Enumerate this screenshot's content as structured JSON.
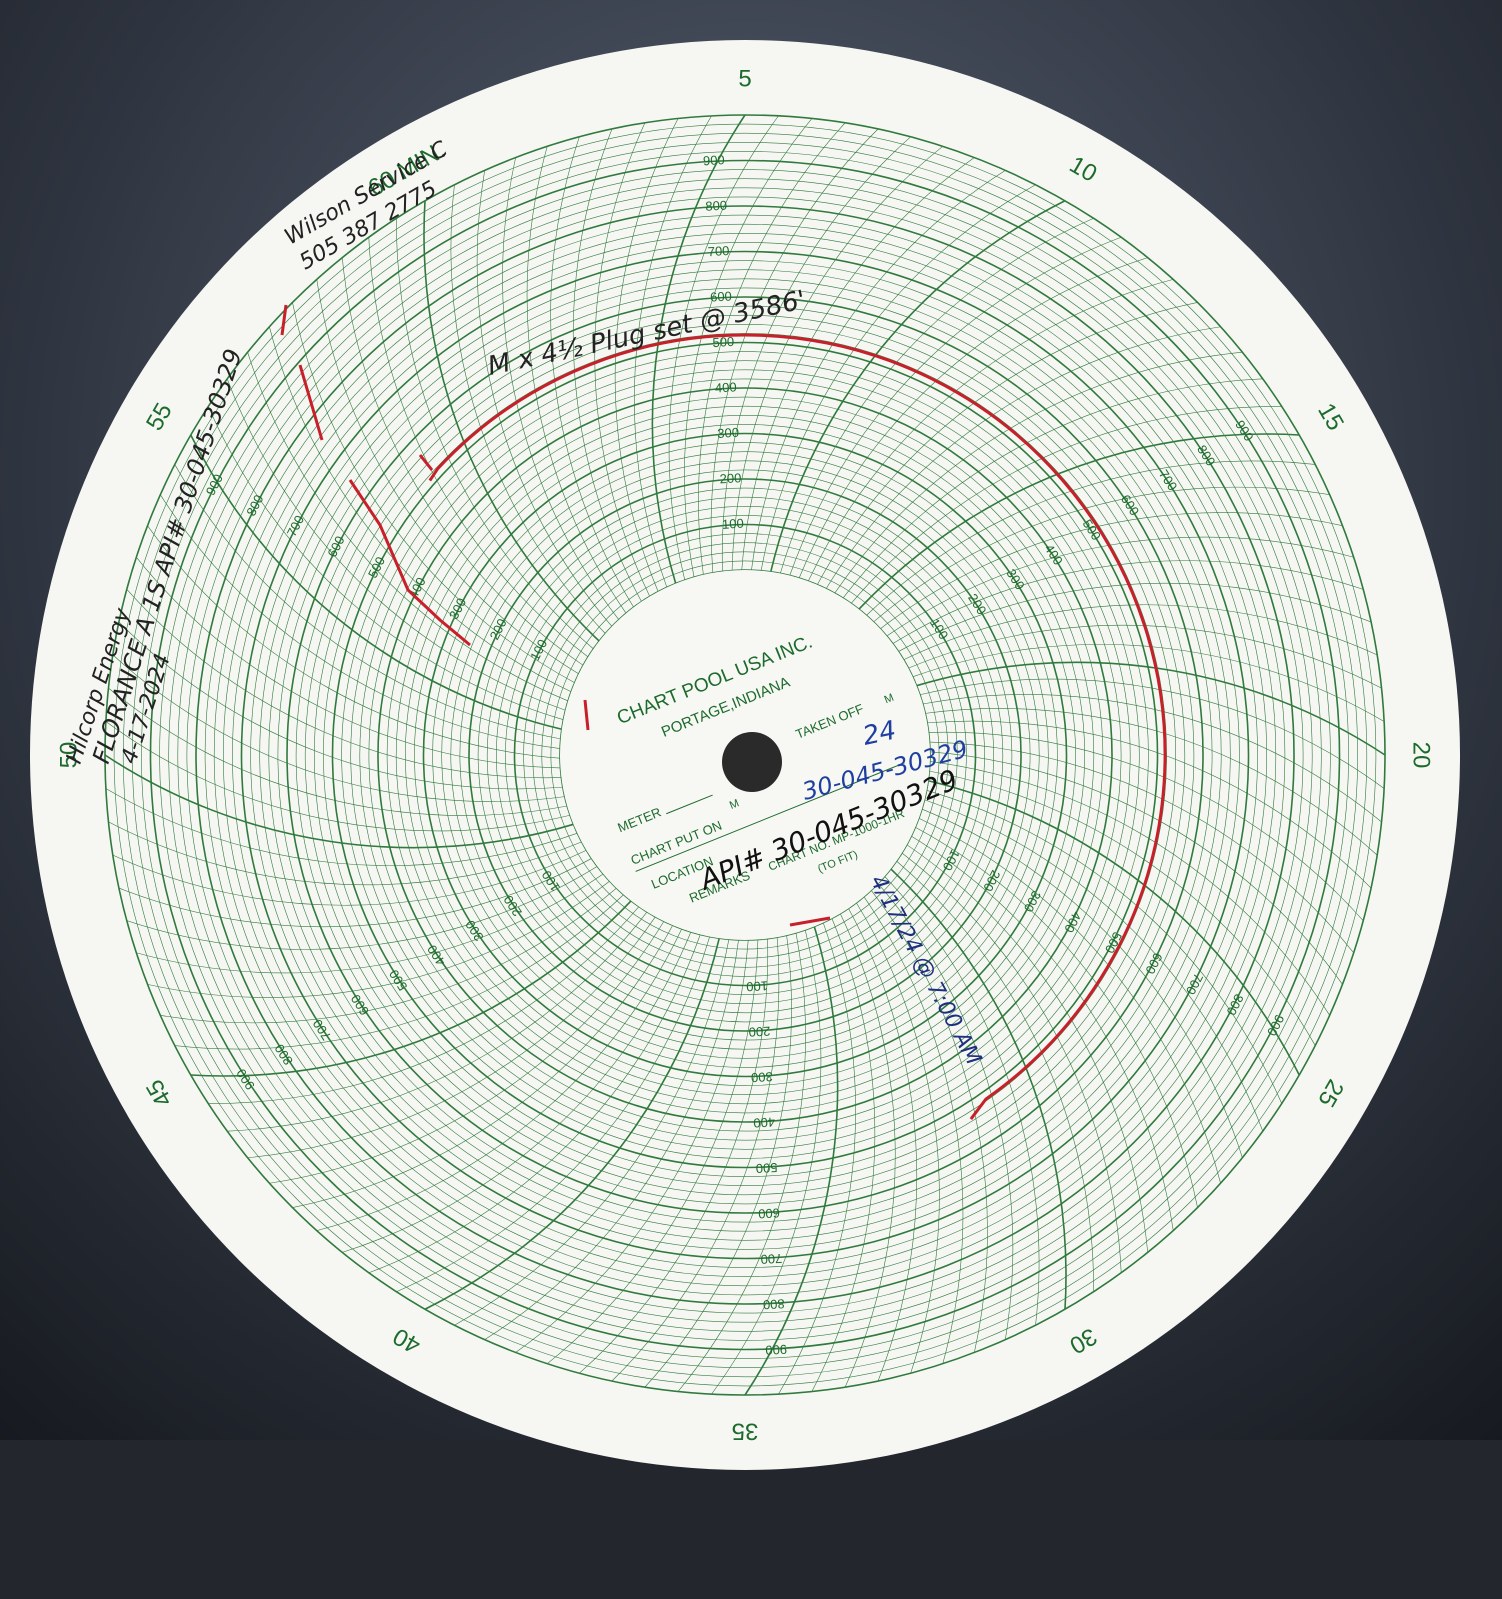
{
  "chart_paper": {
    "minute_labels": [
      "5",
      "10",
      "15",
      "20",
      "25",
      "30",
      "35",
      "40",
      "45",
      "50",
      "55",
      "60 MIN."
    ],
    "pressure_labels": [
      "100",
      "200",
      "300",
      "400",
      "500",
      "600",
      "700",
      "800",
      "900"
    ],
    "maker": "CHART POOL USA INC.",
    "city": "PORTAGE,INDIANA",
    "meter": "METER",
    "put_on": "CHART PUT ON",
    "taken_off": "TAKEN OFF",
    "location": "LOCATION",
    "remarks": "REMARKS",
    "meridiem": "M",
    "chart_no": "CHART NO. MP-1000-1HR",
    "to_fit": "(TO FIT)"
  },
  "handwriting": {
    "service": "Wilson Service C",
    "phone": "505 387 2775",
    "company": "Hilcorp Energy",
    "well": "FLORANCE A 1S API# 30-045-30329",
    "date": "4-17-2024",
    "note": "M x 4½ Plug set @ 3586'",
    "taken_day": "24",
    "taken_api": "30-045-30329",
    "api": "API# 30-045-30329",
    "remark": "4/17/24 @ 7:00 AM"
  }
}
